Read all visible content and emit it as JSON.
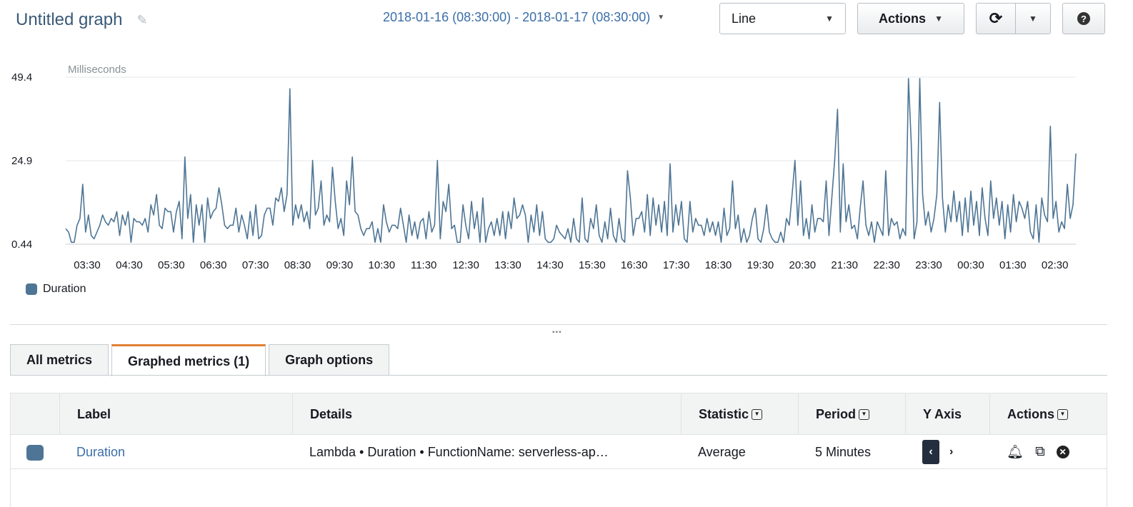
{
  "header": {
    "title": "Untitled graph",
    "edit_icon": "pencil-icon",
    "time_range": "2018-01-16 (08:30:00) - 2018-01-17 (08:30:00)",
    "chart_type_select": "Line",
    "actions_label": "Actions",
    "refresh_icon": "refresh-icon",
    "help_icon": "question-icon"
  },
  "chart_data": {
    "type": "line",
    "ylabel": "Milliseconds",
    "yticks": [
      "0.44",
      "24.9",
      "49.4"
    ],
    "ylim": [
      0.44,
      49.4
    ],
    "xticks": [
      "03:30",
      "04:30",
      "05:30",
      "06:30",
      "07:30",
      "08:30",
      "09:30",
      "10:30",
      "11:30",
      "12:30",
      "13:30",
      "14:30",
      "15:30",
      "16:30",
      "17:30",
      "18:30",
      "19:30",
      "20:30",
      "21:30",
      "22:30",
      "23:30",
      "00:30",
      "01:30",
      "02:30"
    ],
    "x_start": "03:00",
    "x_end": "02:55",
    "interval_minutes": 5,
    "grid": true,
    "legend": "bottom-left",
    "color": "#4e7595",
    "series": [
      {
        "name": "Duration",
        "values": [
          5,
          4,
          1,
          1,
          6,
          8,
          18,
          4,
          9,
          3,
          2,
          4,
          6,
          9,
          7,
          6,
          8,
          7,
          10,
          3,
          9,
          6,
          10,
          1,
          8,
          7,
          7,
          6,
          8,
          4,
          12,
          9,
          15,
          6,
          5,
          11,
          10,
          10,
          4,
          10,
          13,
          2,
          26,
          8,
          15,
          1,
          12,
          6,
          12,
          1,
          14,
          8,
          10,
          11,
          17,
          12,
          6,
          5,
          6,
          6,
          11,
          4,
          9,
          6,
          2,
          10,
          3,
          12,
          2,
          3,
          9,
          11,
          11,
          6,
          14,
          13,
          17,
          10,
          15,
          46,
          6,
          12,
          8,
          12,
          7,
          10,
          5,
          25,
          9,
          11,
          19,
          6,
          9,
          7,
          23,
          13,
          5,
          8,
          3,
          19,
          12,
          26,
          10,
          9,
          5,
          3,
          5,
          5,
          7,
          1,
          5,
          1,
          12,
          7,
          4,
          6,
          6,
          5,
          11,
          6,
          1,
          9,
          3,
          7,
          2,
          7,
          8,
          2,
          10,
          4,
          6,
          25,
          2,
          13,
          10,
          18,
          5,
          6,
          1,
          1,
          12,
          6,
          2,
          13,
          5,
          10,
          1,
          14,
          1,
          5,
          7,
          3,
          8,
          3,
          10,
          2,
          10,
          5,
          14,
          8,
          9,
          12,
          9,
          1,
          9,
          4,
          12,
          3,
          10,
          2,
          1,
          1,
          2,
          6,
          4,
          3,
          2,
          5,
          1,
          8,
          2,
          1,
          14,
          2,
          1,
          8,
          5,
          12,
          3,
          1,
          7,
          2,
          11,
          3,
          1,
          8,
          2,
          1,
          22,
          14,
          3,
          8,
          8,
          10,
          4,
          15,
          3,
          14,
          6,
          12,
          4,
          13,
          3,
          24,
          4,
          12,
          6,
          13,
          2,
          1,
          13,
          4,
          8,
          6,
          6,
          3,
          8,
          4,
          7,
          3,
          7,
          1,
          11,
          3,
          5,
          19,
          5,
          9,
          1,
          5,
          1,
          3,
          8,
          11,
          2,
          1,
          5,
          12,
          4,
          2,
          1,
          1,
          4,
          1,
          8,
          6,
          15,
          25,
          6,
          19,
          3,
          8,
          2,
          12,
          4,
          8,
          8,
          7,
          19,
          3,
          14,
          25,
          40,
          4,
          24,
          7,
          12,
          5,
          6,
          2,
          11,
          19,
          6,
          3,
          7,
          1,
          7,
          5,
          3,
          22,
          3,
          8,
          6,
          7,
          2,
          5,
          3,
          49,
          30,
          2,
          7,
          49,
          15,
          6,
          10,
          4,
          8,
          15,
          42,
          14,
          4,
          12,
          7,
          16,
          7,
          13,
          3,
          14,
          4,
          16,
          6,
          13,
          3,
          17,
          8,
          3,
          19,
          8,
          14,
          6,
          13,
          2,
          12,
          4,
          15,
          7,
          13,
          11,
          8,
          13,
          4,
          2,
          12,
          1,
          14,
          9,
          7,
          35,
          8,
          13,
          4,
          7,
          5,
          18,
          8,
          12,
          27
        ]
      }
    ]
  },
  "tabs": [
    {
      "label": "All metrics",
      "active": false
    },
    {
      "label": "Graphed metrics (1)",
      "active": true
    },
    {
      "label": "Graph options",
      "active": false
    }
  ],
  "table": {
    "columns": {
      "label": "Label",
      "details": "Details",
      "statistic": "Statistic",
      "period": "Period",
      "y_axis": "Y Axis",
      "actions": "Actions"
    },
    "rows": [
      {
        "color": "#4e7595",
        "label": "Duration",
        "details": "Lambda • Duration • FunctionName: serverless-ap…",
        "statistic": "Average",
        "period": "5 Minutes",
        "action_icons": [
          "bell-icon",
          "copy-icon",
          "close-icon"
        ]
      }
    ]
  }
}
